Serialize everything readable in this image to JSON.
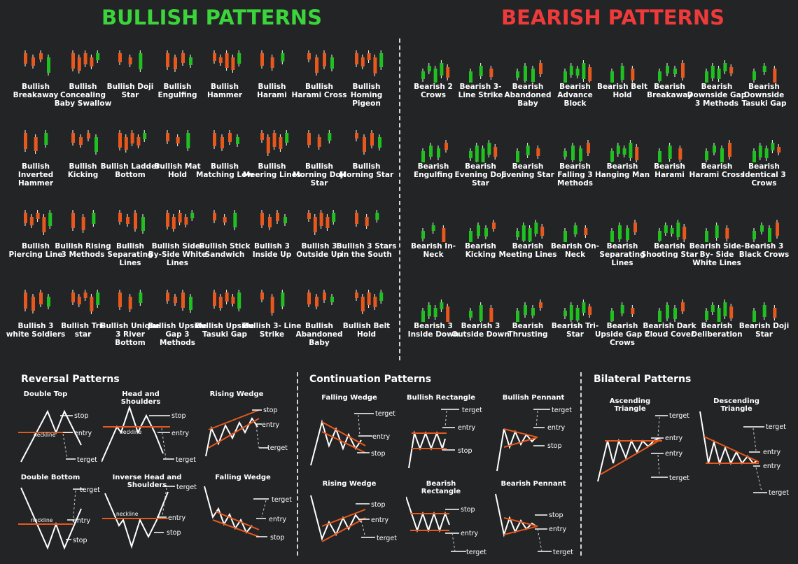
{
  "titles": {
    "bullish": "BULLISH PATTERNS",
    "bearish": "BEARISH PATTERNS"
  },
  "colors": {
    "bull": "#3bd43b",
    "bear": "#ee3a3a",
    "green_candle": "#20c020",
    "orange_candle": "#e8581c",
    "bg": "#222426"
  },
  "bullish_patterns": [
    "Bullish Breakaway",
    "Bullish Concealing Baby Swallow",
    "Bullish Doji Star",
    "Bullish Engulfing",
    "Bullish Hammer",
    "Bullish Harami",
    "Bullish Harami Cross",
    "Bullish Homing Pigeon",
    "Bullish Inverted Hammer",
    "Bullish Kicking",
    "Bullish Ladder Bottom",
    "Bullish Mat Hold",
    "Bullish Matching Low",
    "Bullish Meering Lines",
    "Bullish Morning Doji Star",
    "Bullish Morning Star",
    "Bullish Piercing Line",
    "Bullish Rising 3 Methods",
    "Bullish Separating Lines",
    "Bullish Side-By-Side White Lines",
    "Bullish Stick Sandwich",
    "Bullish 3 Inside Up",
    "Bullish 3 Outside Up",
    "Bullish 3 Stars in the South",
    "Bullish 3 white Soldiers",
    "Bullish Tri-star",
    "Bullish Unique 3 River Bottom",
    "Bullish Upside Gap 3 Methods",
    "Bullish Upside Tasuki Gap",
    "Bullish 3- Line Strike",
    "Bullish Abandoned Baby",
    "Bullish Belt Hold"
  ],
  "bearish_patterns": [
    "Bearish 2 Crows",
    "Bearish 3- Line Strike",
    "Bearish Abandoned Baby",
    "Bearish Advance Block",
    "Bearish Belt Hold",
    "Bearish Breakaway",
    "Bearish Downside Gap 3 Methods",
    "Bearish Downside Tasuki Gap",
    "Bearish Engulfing",
    "Bearish Evening Doji Star",
    "Bearish Evening Star",
    "Bearish Falling 3 Methods",
    "Bearish Hanging Man",
    "Bearish Harami",
    "Bearish Harami Cross",
    "Bearish Identical 3 Crows",
    "Bearish In- Neck",
    "Bearish Kicking",
    "Bearish Meeting Lines",
    "Bearish On-Neck",
    "Bearish Separating Lines",
    "Bearish Shooting Star",
    "Bearish Side-By- Side White Lines",
    "Bearish 3 Black Crows",
    "Bearish 3 Inside Down",
    "Bearish 3 Outside Down",
    "Bearish Thrusting",
    "Bearish Tri-Star",
    "Bearish Upside Gap 2 Crows",
    "Bearish Dark Cloud Cover",
    "Bearish Deliberation",
    "Bearish Doji Star"
  ],
  "sections": {
    "reversal": "Reversal Patterns",
    "continuation": "Continuation Patterns",
    "bilateral": "Bilateral Patterns"
  },
  "diagrams": {
    "double_top": "Double Top",
    "head_shoulders": "Head and Shoulders",
    "rising_wedge_r": "Rising Wedge",
    "double_bottom": "Double Bottom",
    "inverse_hs": "Inverse Head and Shoulders",
    "falling_wedge_r": "Falling Wedge",
    "falling_wedge_c": "Falling Wedge",
    "bullish_rectangle": "Bullish Rectangle",
    "bullish_pennant": "Bullish Pennant",
    "rising_wedge_c": "Rising Wedge",
    "bearish_rectangle": "Bearish Rectangle",
    "bearish_pennant": "Bearish Pennant",
    "ascending_triangle": "Ascending Triangle",
    "descending_triangle": "Descending Triangle"
  },
  "labels": {
    "stop": "stop",
    "entry": "entry",
    "target": "terget",
    "neckline": "neckline"
  }
}
